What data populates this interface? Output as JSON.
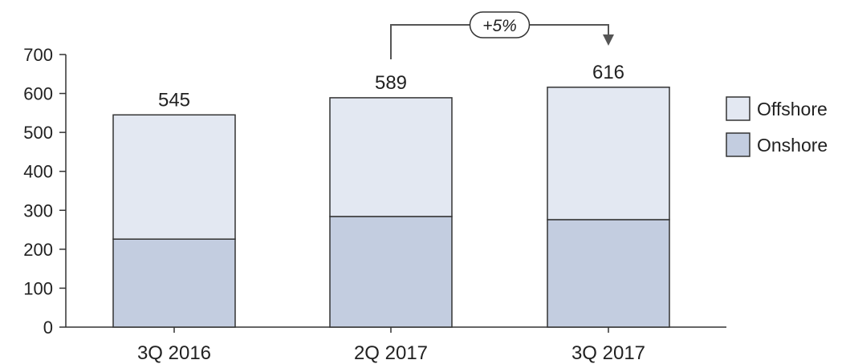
{
  "chart_data": {
    "type": "bar",
    "stacked": true,
    "title": "",
    "xlabel": "",
    "ylabel": "",
    "categories": [
      "3Q 2016",
      "2Q 2017",
      "3Q 2017"
    ],
    "series": [
      {
        "name": "Onshore",
        "values": [
          226,
          284,
          276
        ],
        "color": "#c3cde0"
      },
      {
        "name": "Offshore",
        "values": [
          319,
          305,
          340
        ],
        "color": "#e3e8f2"
      }
    ],
    "totals": [
      "545",
      "589",
      "616"
    ],
    "ylim": [
      0,
      700
    ],
    "yticks": [
      "0",
      "100",
      "200",
      "300",
      "400",
      "500",
      "600",
      "700"
    ],
    "ytick_values": [
      0,
      100,
      200,
      300,
      400,
      500,
      600,
      700
    ],
    "grid": false,
    "legend": {
      "placement": "right",
      "entries": [
        "Offshore",
        "Onshore"
      ]
    },
    "annotation": {
      "label": "+5%",
      "from_category": "2Q 2017",
      "to_category": "3Q 2017"
    },
    "colors": {
      "bar_stroke": "#333333",
      "axis": "#333333",
      "arrow": "#555555"
    }
  }
}
